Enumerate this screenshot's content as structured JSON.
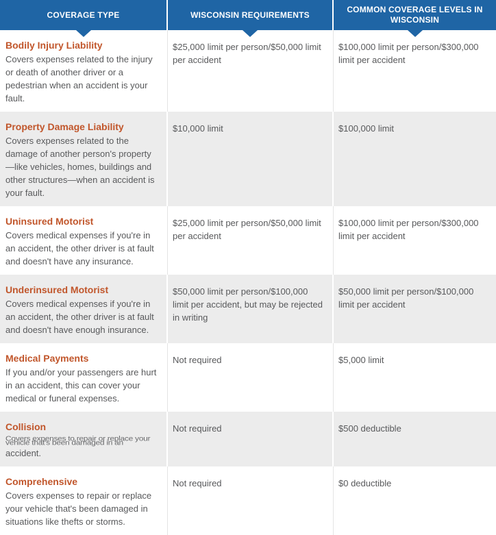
{
  "colors": {
    "header_blue": "#1f65a5",
    "title_orange": "#c1562b",
    "row_alt_gray": "#ececec",
    "body_text": "#58595b"
  },
  "table": {
    "headers": [
      {
        "label": "COVERAGE TYPE"
      },
      {
        "label": "WISCONSIN REQUIREMENTS"
      },
      {
        "label": "COMMON COVERAGE LEVELS IN WISCONSIN"
      }
    ],
    "rows": [
      {
        "coverage": "Bodily Injury Liability",
        "description": "Covers expenses related to the injury or death of another driver or a pedestrian when an accident is your fault.",
        "requirement": "$25,000 limit per person/$50,000 limit per accident",
        "common_level": "$100,000 limit per person/$300,000 limit per accident"
      },
      {
        "coverage": "Property Damage Liability",
        "description": "Covers expenses related to the damage of another person's property—like vehicles, homes, buildings and other structures—when an accident is your fault.",
        "requirement": "$10,000 limit",
        "common_level": "$100,000 limit"
      },
      {
        "coverage": "Uninsured Motorist",
        "description": "Covers medical expenses if you're in an accident, the other driver is at fault and doesn't have any insurance.",
        "requirement": "$25,000 limit per person/$50,000 limit per accident",
        "common_level": "$100,000 limit per person/$300,000 limit per accident"
      },
      {
        "coverage": "Underinsured Motorist",
        "description": "Covers medical expenses if you're in an accident, the other driver is at fault and doesn't have enough insurance.",
        "requirement": "$50,000 limit per person/$100,000 limit per accident, but may be rejected in writing",
        "common_level": "$50,000 limit per person/$100,000 limit per accident"
      },
      {
        "coverage": "Medical Payments",
        "description": "If you and/or your passengers are hurt in an accident, this can cover your medical or funeral expenses.",
        "requirement": "Not required",
        "common_level": "$5,000 limit"
      },
      {
        "coverage": "Collision",
        "description_glitched": "Covers expenses to repair or replace your vehicle that's been damaged in an",
        "description": "accident.",
        "requirement": "Not required",
        "common_level": "$500 deductible"
      },
      {
        "coverage": "Comprehensive",
        "description": "Covers expenses to repair or replace your vehicle that's been damaged in situations like thefts or storms.",
        "requirement": "Not required",
        "common_level": "$0 deductible"
      }
    ]
  }
}
